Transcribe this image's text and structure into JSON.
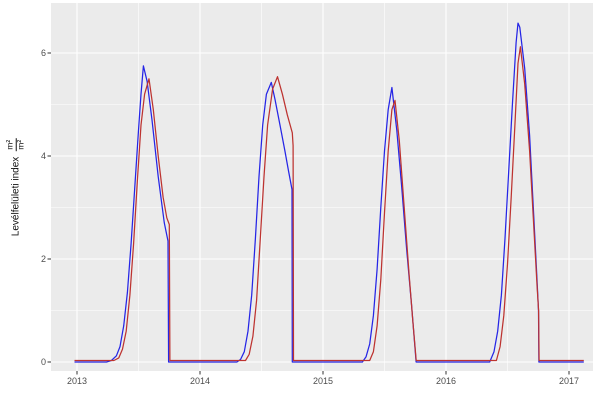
{
  "figure": {
    "background": "#ffffff"
  },
  "chart_data": {
    "type": "line",
    "title": "",
    "xlabel": "",
    "ylabel": "Levélfelületi index m²/m²",
    "ylabel_parts": {
      "text": "Levélfelületi index",
      "numerator": "m²",
      "denominator": "m²"
    },
    "legend": "none",
    "grid": true,
    "panel_bg": "#ebebeb",
    "grid_color": "#ffffff",
    "tick_color": "#333333",
    "tick_label_color": "#4d4d4d",
    "xlim": [
      2012.79,
      2017.2
    ],
    "ylim": [
      -0.17,
      6.97
    ],
    "x_ticks": [
      2013,
      2014,
      2015,
      2016,
      2017
    ],
    "x_tick_labels": [
      "2013",
      "2014",
      "2015",
      "2016",
      "2017"
    ],
    "x_minor_ticks": [
      2013.5,
      2014.5,
      2015.5,
      2016.5
    ],
    "y_ticks": [
      0,
      2,
      4,
      6
    ],
    "y_tick_labels": [
      "0",
      "2",
      "4",
      "6"
    ],
    "y_minor_ticks": [
      1,
      3,
      5
    ],
    "series": [
      {
        "name": "blue",
        "color": "#2525e6",
        "points": [
          [
            2012.98,
            0
          ],
          [
            2013.24,
            0
          ],
          [
            2013.28,
            0.03
          ],
          [
            2013.32,
            0.12
          ],
          [
            2013.35,
            0.3
          ],
          [
            2013.38,
            0.7
          ],
          [
            2013.41,
            1.35
          ],
          [
            2013.44,
            2.3
          ],
          [
            2013.47,
            3.4
          ],
          [
            2013.5,
            4.5
          ],
          [
            2013.52,
            5.2
          ],
          [
            2013.54,
            5.75
          ],
          [
            2013.57,
            5.45
          ],
          [
            2013.61,
            4.7
          ],
          [
            2013.66,
            3.6
          ],
          [
            2013.71,
            2.7
          ],
          [
            2013.74,
            2.35
          ],
          [
            2013.745,
            0
          ],
          [
            2014.3,
            0
          ],
          [
            2014.33,
            0.05
          ],
          [
            2014.36,
            0.2
          ],
          [
            2014.39,
            0.6
          ],
          [
            2014.42,
            1.3
          ],
          [
            2014.45,
            2.4
          ],
          [
            2014.48,
            3.6
          ],
          [
            2014.51,
            4.6
          ],
          [
            2014.54,
            5.2
          ],
          [
            2014.58,
            5.43
          ],
          [
            2014.61,
            5.1
          ],
          [
            2014.65,
            4.6
          ],
          [
            2014.69,
            4.1
          ],
          [
            2014.72,
            3.7
          ],
          [
            2014.748,
            3.35
          ],
          [
            2014.75,
            0
          ],
          [
            2015.32,
            0
          ],
          [
            2015.35,
            0.1
          ],
          [
            2015.38,
            0.35
          ],
          [
            2015.41,
            0.9
          ],
          [
            2015.44,
            1.8
          ],
          [
            2015.47,
            3.0
          ],
          [
            2015.5,
            4.1
          ],
          [
            2015.53,
            4.9
          ],
          [
            2015.56,
            5.33
          ],
          [
            2015.6,
            4.5
          ],
          [
            2015.64,
            3.4
          ],
          [
            2015.68,
            2.2
          ],
          [
            2015.72,
            1.1
          ],
          [
            2015.75,
            0.2
          ],
          [
            2015.757,
            0
          ],
          [
            2016.355,
            0
          ],
          [
            2016.39,
            0.2
          ],
          [
            2016.42,
            0.6
          ],
          [
            2016.45,
            1.3
          ],
          [
            2016.48,
            2.4
          ],
          [
            2016.51,
            3.7
          ],
          [
            2016.54,
            5.0
          ],
          [
            2016.57,
            6.2
          ],
          [
            2016.585,
            6.58
          ],
          [
            2016.6,
            6.5
          ],
          [
            2016.64,
            5.7
          ],
          [
            2016.68,
            4.4
          ],
          [
            2016.71,
            3.0
          ],
          [
            2016.74,
            1.6
          ],
          [
            2016.752,
            1.0
          ],
          [
            2016.755,
            0
          ],
          [
            2017.12,
            0
          ]
        ]
      },
      {
        "name": "red",
        "color": "#bd3330",
        "points": [
          [
            2012.98,
            0.03
          ],
          [
            2013.3,
            0.03
          ],
          [
            2013.34,
            0.08
          ],
          [
            2013.37,
            0.25
          ],
          [
            2013.4,
            0.6
          ],
          [
            2013.43,
            1.3
          ],
          [
            2013.46,
            2.3
          ],
          [
            2013.49,
            3.5
          ],
          [
            2013.52,
            4.6
          ],
          [
            2013.55,
            5.2
          ],
          [
            2013.585,
            5.5
          ],
          [
            2013.62,
            4.9
          ],
          [
            2013.66,
            4.0
          ],
          [
            2013.7,
            3.2
          ],
          [
            2013.73,
            2.8
          ],
          [
            2013.75,
            2.67
          ],
          [
            2013.755,
            0.03
          ],
          [
            2014.37,
            0.03
          ],
          [
            2014.4,
            0.15
          ],
          [
            2014.43,
            0.5
          ],
          [
            2014.46,
            1.2
          ],
          [
            2014.49,
            2.4
          ],
          [
            2014.52,
            3.6
          ],
          [
            2014.55,
            4.6
          ],
          [
            2014.59,
            5.3
          ],
          [
            2014.63,
            5.54
          ],
          [
            2014.67,
            5.2
          ],
          [
            2014.71,
            4.8
          ],
          [
            2014.75,
            4.45
          ],
          [
            2014.757,
            4.2
          ],
          [
            2014.76,
            0.03
          ],
          [
            2015.38,
            0.03
          ],
          [
            2015.41,
            0.2
          ],
          [
            2015.44,
            0.7
          ],
          [
            2015.47,
            1.6
          ],
          [
            2015.5,
            2.9
          ],
          [
            2015.53,
            4.1
          ],
          [
            2015.56,
            4.9
          ],
          [
            2015.585,
            5.08
          ],
          [
            2015.62,
            4.3
          ],
          [
            2015.66,
            3.0
          ],
          [
            2015.7,
            1.7
          ],
          [
            2015.73,
            0.8
          ],
          [
            2015.758,
            0.03
          ],
          [
            2016.41,
            0.03
          ],
          [
            2016.44,
            0.3
          ],
          [
            2016.47,
            0.9
          ],
          [
            2016.5,
            1.9
          ],
          [
            2016.53,
            3.2
          ],
          [
            2016.56,
            4.6
          ],
          [
            2016.585,
            5.8
          ],
          [
            2016.605,
            6.12
          ],
          [
            2016.64,
            5.4
          ],
          [
            2016.68,
            4.1
          ],
          [
            2016.71,
            2.8
          ],
          [
            2016.74,
            1.5
          ],
          [
            2016.753,
            1.0
          ],
          [
            2016.757,
            0.03
          ],
          [
            2017.12,
            0.03
          ]
        ]
      }
    ]
  }
}
